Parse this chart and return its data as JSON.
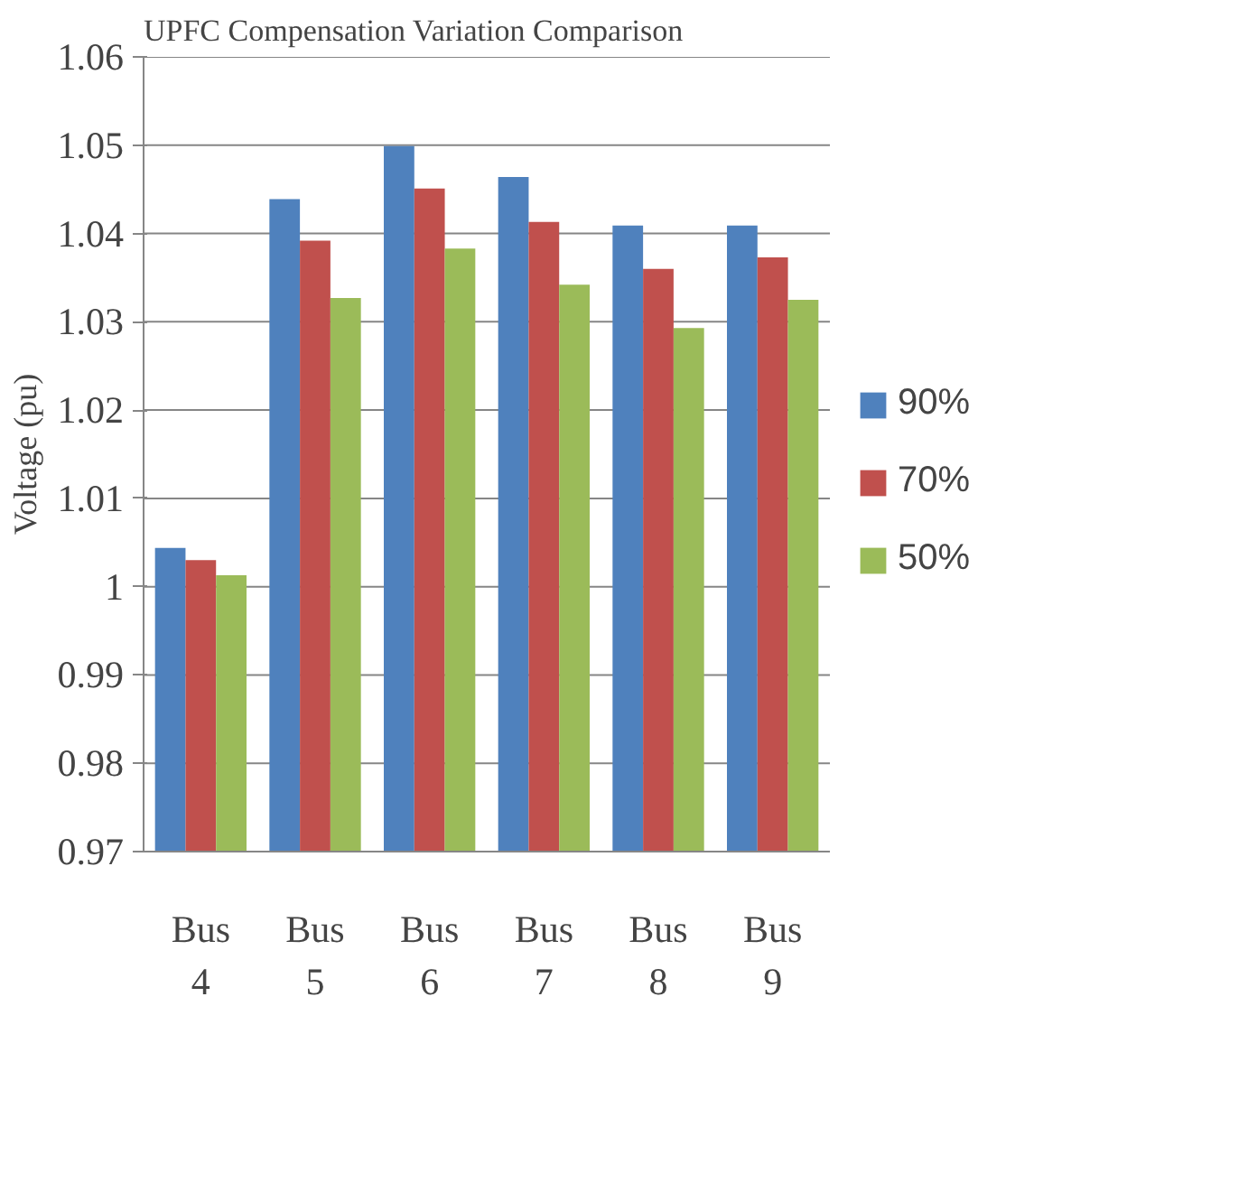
{
  "chart_data": {
    "type": "bar",
    "title": "UPFC  Compensation Variation Comparison",
    "ylabel": "Voltage (pu)",
    "categories": [
      "Bus 4",
      "Bus 5",
      "Bus 6",
      "Bus 7",
      "Bus 8",
      "Bus 9"
    ],
    "series": [
      {
        "name": "90%",
        "color": "#4f81bd",
        "values": [
          1.0044,
          1.0439,
          1.0499,
          1.0464,
          1.0409,
          1.0409
        ]
      },
      {
        "name": "70%",
        "color": "#c0504d",
        "values": [
          1.003,
          1.0392,
          1.0451,
          1.0413,
          1.036,
          1.0373
        ]
      },
      {
        "name": "50%",
        "color": "#9bbb59",
        "values": [
          1.0013,
          1.0327,
          1.0383,
          1.0342,
          1.0293,
          1.0325
        ]
      }
    ],
    "ylim": [
      0.97,
      1.06
    ],
    "yticks": [
      0.97,
      0.98,
      0.99,
      1,
      1.01,
      1.02,
      1.03,
      1.04,
      1.05,
      1.06
    ],
    "grid": "y",
    "legend": "right"
  }
}
